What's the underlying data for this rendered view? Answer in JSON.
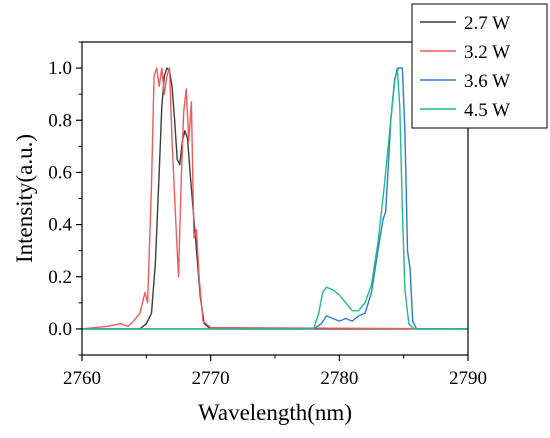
{
  "chart_data": {
    "type": "line",
    "xlabel": "Wavelength(nm)",
    "ylabel": "Intensity(a.u.)",
    "xlim": [
      2760,
      2790
    ],
    "ylim": [
      -0.1,
      1.1
    ],
    "xticks": [
      2760,
      2770,
      2780,
      2790
    ],
    "xtick_labels": [
      "2760",
      "2770",
      "2780",
      "2790"
    ],
    "yticks": [
      0.0,
      0.2,
      0.4,
      0.6,
      0.8,
      1.0
    ],
    "ytick_labels": [
      "0.0",
      "0.2",
      "0.4",
      "0.6",
      "0.8",
      "1.0"
    ],
    "legend_position": "top-right",
    "series": [
      {
        "name": "2.7 W",
        "color": "#3c3c3c",
        "points": [
          [
            2760,
            0.0
          ],
          [
            2764.5,
            0.0
          ],
          [
            2765.0,
            0.02
          ],
          [
            2765.4,
            0.06
          ],
          [
            2765.7,
            0.25
          ],
          [
            2766.0,
            0.6
          ],
          [
            2766.2,
            0.85
          ],
          [
            2766.4,
            0.97
          ],
          [
            2766.6,
            1.0
          ],
          [
            2766.8,
            0.99
          ],
          [
            2767.0,
            0.93
          ],
          [
            2767.2,
            0.8
          ],
          [
            2767.4,
            0.65
          ],
          [
            2767.6,
            0.63
          ],
          [
            2767.8,
            0.72
          ],
          [
            2768.0,
            0.76
          ],
          [
            2768.2,
            0.73
          ],
          [
            2768.4,
            0.6
          ],
          [
            2768.6,
            0.48
          ],
          [
            2768.9,
            0.3
          ],
          [
            2769.2,
            0.12
          ],
          [
            2769.5,
            0.02
          ],
          [
            2770.0,
            0.0
          ],
          [
            2790,
            0.0
          ]
        ]
      },
      {
        "name": "3.2 W",
        "color": "#ef5a5a",
        "points": [
          [
            2760,
            0.0
          ],
          [
            2762.0,
            0.01
          ],
          [
            2763.0,
            0.02
          ],
          [
            2763.6,
            0.01
          ],
          [
            2764.0,
            0.03
          ],
          [
            2764.5,
            0.06
          ],
          [
            2764.9,
            0.14
          ],
          [
            2765.1,
            0.1
          ],
          [
            2765.4,
            0.55
          ],
          [
            2765.6,
            0.97
          ],
          [
            2765.8,
            1.0
          ],
          [
            2766.0,
            0.93
          ],
          [
            2766.2,
            1.0
          ],
          [
            2766.4,
            0.9
          ],
          [
            2766.6,
            0.97
          ],
          [
            2766.8,
            1.0
          ],
          [
            2767.0,
            0.72
          ],
          [
            2767.3,
            0.4
          ],
          [
            2767.5,
            0.2
          ],
          [
            2767.7,
            0.55
          ],
          [
            2767.9,
            0.83
          ],
          [
            2768.1,
            0.92
          ],
          [
            2768.3,
            0.72
          ],
          [
            2768.5,
            0.87
          ],
          [
            2768.7,
            0.35
          ],
          [
            2768.9,
            0.38
          ],
          [
            2769.1,
            0.2
          ],
          [
            2769.4,
            0.03
          ],
          [
            2770.0,
            0.005
          ],
          [
            2790,
            0.0
          ]
        ]
      },
      {
        "name": "3.6 W",
        "color": "#2b7bd0",
        "points": [
          [
            2760,
            0.0
          ],
          [
            2778.0,
            0.0
          ],
          [
            2778.6,
            0.02
          ],
          [
            2779.0,
            0.05
          ],
          [
            2779.5,
            0.04
          ],
          [
            2780.0,
            0.03
          ],
          [
            2780.5,
            0.04
          ],
          [
            2781.0,
            0.03
          ],
          [
            2781.5,
            0.05
          ],
          [
            2782.0,
            0.06
          ],
          [
            2782.5,
            0.14
          ],
          [
            2783.0,
            0.3
          ],
          [
            2783.4,
            0.42
          ],
          [
            2783.6,
            0.45
          ],
          [
            2783.8,
            0.62
          ],
          [
            2784.0,
            0.8
          ],
          [
            2784.3,
            0.96
          ],
          [
            2784.6,
            1.0
          ],
          [
            2784.9,
            1.0
          ],
          [
            2785.1,
            0.75
          ],
          [
            2785.3,
            0.3
          ],
          [
            2785.5,
            0.23
          ],
          [
            2785.7,
            0.03
          ],
          [
            2786.0,
            0.0
          ],
          [
            2790,
            0.0
          ]
        ]
      },
      {
        "name": "4.5 W",
        "color": "#22b98b",
        "points": [
          [
            2760,
            0.0
          ],
          [
            2778.0,
            0.0
          ],
          [
            2778.4,
            0.06
          ],
          [
            2778.7,
            0.14
          ],
          [
            2779.0,
            0.16
          ],
          [
            2779.5,
            0.15
          ],
          [
            2780.0,
            0.13
          ],
          [
            2780.5,
            0.1
          ],
          [
            2781.0,
            0.07
          ],
          [
            2781.5,
            0.07
          ],
          [
            2782.0,
            0.1
          ],
          [
            2782.5,
            0.17
          ],
          [
            2783.0,
            0.33
          ],
          [
            2783.5,
            0.55
          ],
          [
            2784.0,
            0.8
          ],
          [
            2784.3,
            0.95
          ],
          [
            2784.5,
            1.0
          ],
          [
            2784.7,
            0.85
          ],
          [
            2784.9,
            0.45
          ],
          [
            2785.1,
            0.15
          ],
          [
            2785.4,
            0.02
          ],
          [
            2785.8,
            0.0
          ],
          [
            2790,
            0.0
          ]
        ]
      }
    ]
  }
}
